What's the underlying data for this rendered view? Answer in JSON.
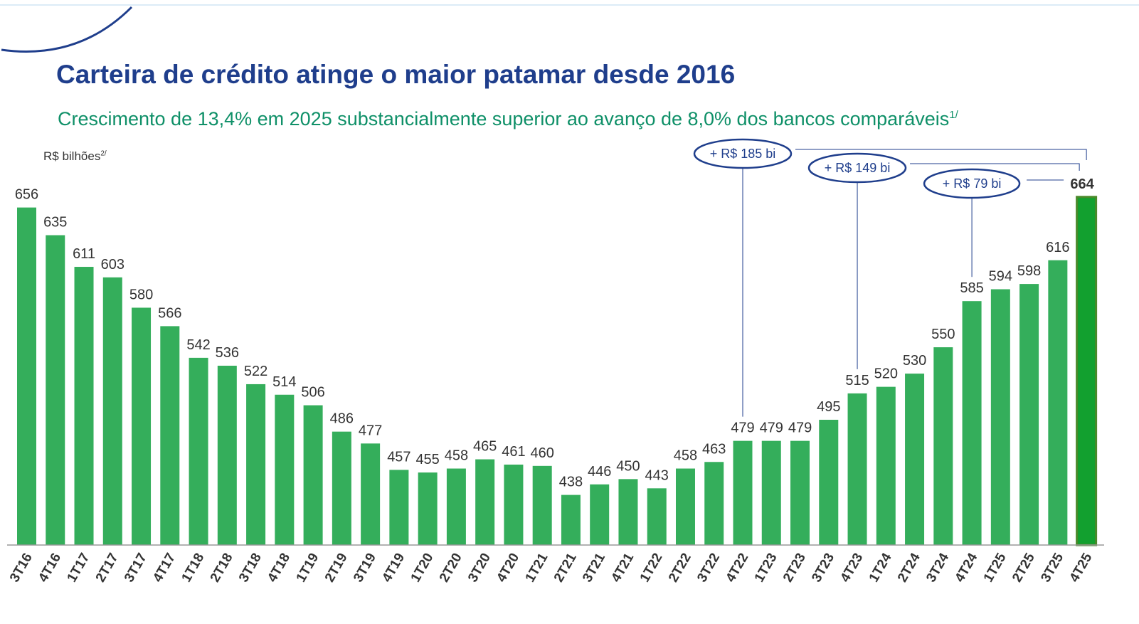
{
  "title": "Carteira de crédito atinge o maior patamar desde 2016",
  "subtitle": "Crescimento de 13,4% em 2025 substancialmente superior ao avanço de 8,0% dos bancos comparáveis",
  "subtitle_footnote": "1/",
  "colors": {
    "title": "#1f3e8c",
    "subtitle": "#0f9068",
    "bar": "#34ae5b",
    "highlight_bar": "#12a02f",
    "annotation": "#1f3e8c"
  },
  "chart_data": {
    "type": "bar",
    "title": "Carteira de crédito atinge o maior patamar desde 2016",
    "ylabel": "R$ bilhões",
    "ylabel_footnote": "2/",
    "ylim": [
      400,
      680
    ],
    "grid": false,
    "categories": [
      "3T16",
      "4T16",
      "1T17",
      "2T17",
      "3T17",
      "4T17",
      "1T18",
      "2T18",
      "3T18",
      "4T18",
      "1T19",
      "2T19",
      "3T19",
      "4T19",
      "1T20",
      "2T20",
      "3T20",
      "4T20",
      "1T21",
      "2T21",
      "3T21",
      "4T21",
      "1T22",
      "2T22",
      "3T22",
      "4T22",
      "1T23",
      "2T23",
      "3T23",
      "4T23",
      "1T24",
      "2T24",
      "3T24",
      "4T24",
      "1T25",
      "2T25",
      "3T25",
      "4T25"
    ],
    "values": [
      656,
      635,
      611,
      603,
      580,
      566,
      542,
      536,
      522,
      514,
      506,
      486,
      477,
      457,
      455,
      458,
      465,
      461,
      460,
      438,
      446,
      450,
      443,
      458,
      463,
      479,
      479,
      479,
      495,
      515,
      520,
      530,
      550,
      585,
      594,
      598,
      616,
      664
    ],
    "highlight": "4T25",
    "annotations": [
      {
        "label": "+ R$ 185 bi",
        "from": "4T22",
        "to": "4T25"
      },
      {
        "label": "+ R$ 149 bi",
        "from": "4T23",
        "to": "4T25"
      },
      {
        "label": "+ R$ 79 bi",
        "from": "4T24",
        "to": "4T25"
      }
    ]
  }
}
